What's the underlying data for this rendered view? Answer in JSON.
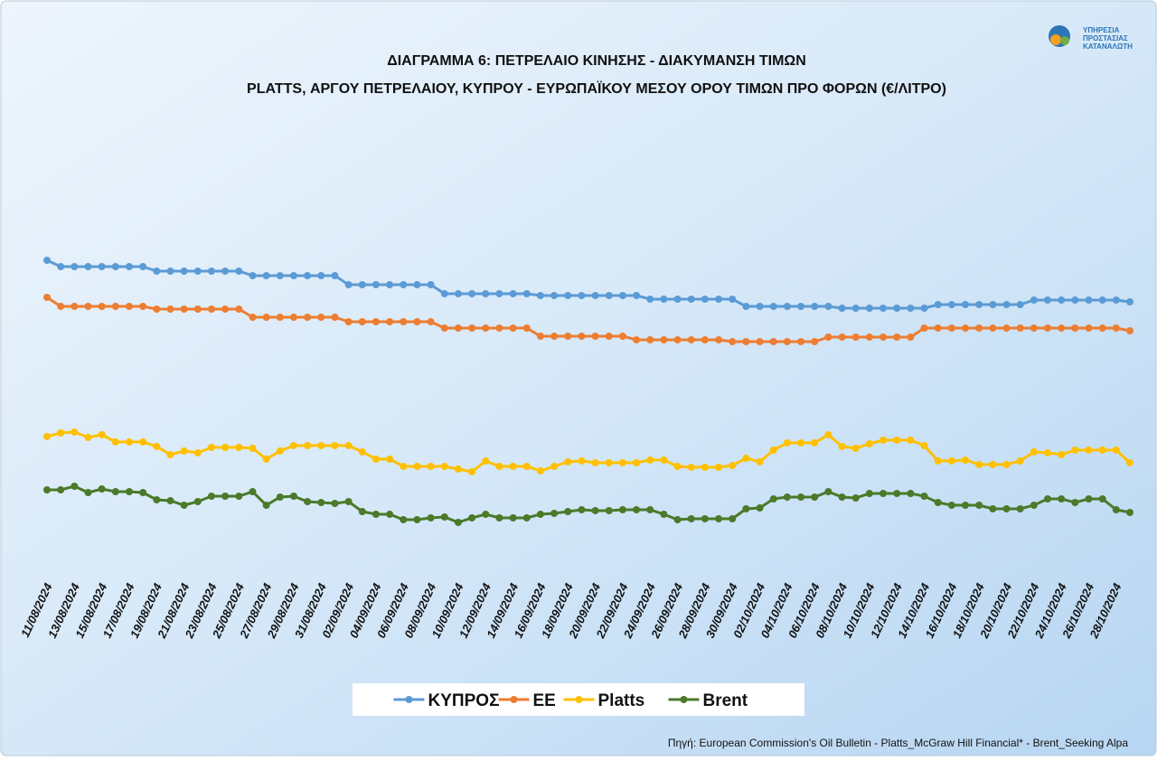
{
  "logo": {
    "lines": [
      "ΥΠΗΡΕΣΙΑ",
      "ΠΡΟΣΤΑΣΙΑΣ",
      "ΚΑΤΑΝΑΛΩΤΗ"
    ]
  },
  "chart_data": {
    "type": "line",
    "title": "ΔΙΑΓΡΑΜΜΑ 6: ΠΕΤΡΕΛΑΙΟ ΚΙΝΗΣΗΣ - ΔΙΑΚΥΜΑΝΣΗ ΤΙΜΩΝ",
    "subtitle": "PLATTS, ΑΡΓΟΥ ΠΕΤΡΕΛΑΙΟΥ, ΚΥΠΡΟΥ - ΕΥΡΩΠΑΪΚΟΥ ΜΕΣΟΥ ΟΡΟΥ ΤΙΜΩΝ ΠΡΟ ΦΟΡΩΝ (€/ΛΙΤΡΟ)",
    "source": "Πηγή: European Commission's Oil Bulletin - Platts_McGraw Hill Financial* - Brent_Seeking Alpa",
    "legend": "bottom",
    "ylim": [
      0.35,
      0.75
    ],
    "categories": [
      "11/08/2024",
      null,
      "13/08/2024",
      null,
      "15/08/2024",
      null,
      "17/08/2024",
      null,
      "19/08/2024",
      null,
      "21/08/2024",
      null,
      "23/08/2024",
      null,
      "25/08/2024",
      null,
      "27/08/2024",
      null,
      "29/08/2024",
      null,
      "31/08/2024",
      null,
      "02/09/2024",
      null,
      "04/09/2024",
      null,
      "06/09/2024",
      null,
      "08/09/2024",
      null,
      "10/09/2024",
      null,
      "12/09/2024",
      null,
      "14/09/2024",
      null,
      "16/09/2024",
      null,
      "18/09/2024",
      null,
      "20/09/2024",
      null,
      "22/09/2024",
      null,
      "24/09/2024",
      null,
      "26/09/2024",
      null,
      "28/09/2024",
      null,
      "30/09/2024",
      null,
      "02/10/2024",
      null,
      "04/10/2024",
      null,
      "06/10/2024",
      null,
      "08/10/2024",
      null,
      "10/10/2024",
      null,
      "12/10/2024",
      null,
      "14/10/2024",
      null,
      "16/10/2024",
      null,
      "18/10/2024",
      null,
      "20/10/2024",
      null,
      "22/10/2024",
      null,
      "24/10/2024",
      null,
      "26/10/2024",
      null,
      "28/10/2024",
      null
    ],
    "series": [
      {
        "name": "ΚΥΠΡΟΣ",
        "color": "#5b9bd5",
        "values": [
          0.712,
          0.705,
          0.705,
          0.705,
          0.705,
          0.705,
          0.705,
          0.705,
          0.7,
          0.7,
          0.7,
          0.7,
          0.7,
          0.7,
          0.7,
          0.695,
          0.695,
          0.695,
          0.695,
          0.695,
          0.695,
          0.695,
          0.685,
          0.685,
          0.685,
          0.685,
          0.685,
          0.685,
          0.685,
          0.675,
          0.675,
          0.675,
          0.675,
          0.675,
          0.675,
          0.675,
          0.673,
          0.673,
          0.673,
          0.673,
          0.673,
          0.673,
          0.673,
          0.673,
          0.669,
          0.669,
          0.669,
          0.669,
          0.669,
          0.669,
          0.669,
          0.661,
          0.661,
          0.661,
          0.661,
          0.661,
          0.661,
          0.661,
          0.659,
          0.659,
          0.659,
          0.659,
          0.659,
          0.659,
          0.659,
          0.663,
          0.663,
          0.663,
          0.663,
          0.663,
          0.663,
          0.663,
          0.668,
          0.668,
          0.668,
          0.668,
          0.668,
          0.668,
          0.668,
          0.666
        ]
      },
      {
        "name": "ΕΕ",
        "color": "#ed7d31",
        "values": [
          0.671,
          0.661,
          0.661,
          0.661,
          0.661,
          0.661,
          0.661,
          0.661,
          0.658,
          0.658,
          0.658,
          0.658,
          0.658,
          0.658,
          0.658,
          0.649,
          0.649,
          0.649,
          0.649,
          0.649,
          0.649,
          0.649,
          0.644,
          0.644,
          0.644,
          0.644,
          0.644,
          0.644,
          0.644,
          0.637,
          0.637,
          0.637,
          0.637,
          0.637,
          0.637,
          0.637,
          0.628,
          0.628,
          0.628,
          0.628,
          0.628,
          0.628,
          0.628,
          0.624,
          0.624,
          0.624,
          0.624,
          0.624,
          0.624,
          0.624,
          0.622,
          0.622,
          0.622,
          0.622,
          0.622,
          0.622,
          0.622,
          0.627,
          0.627,
          0.627,
          0.627,
          0.627,
          0.627,
          0.627,
          0.637,
          0.637,
          0.637,
          0.637,
          0.637,
          0.637,
          0.637,
          0.637,
          0.637,
          0.637,
          0.637,
          0.637,
          0.637,
          0.637,
          0.637,
          0.634
        ]
      },
      {
        "name": "Platts",
        "color": "#ffc000",
        "values": [
          0.517,
          0.521,
          0.522,
          0.516,
          0.519,
          0.511,
          0.511,
          0.511,
          0.506,
          0.497,
          0.501,
          0.499,
          0.505,
          0.505,
          0.505,
          0.504,
          0.492,
          0.501,
          0.507,
          0.507,
          0.507,
          0.507,
          0.507,
          0.5,
          0.492,
          0.492,
          0.484,
          0.484,
          0.484,
          0.484,
          0.481,
          0.478,
          0.49,
          0.484,
          0.484,
          0.484,
          0.479,
          0.484,
          0.489,
          0.49,
          0.488,
          0.488,
          0.488,
          0.488,
          0.491,
          0.491,
          0.484,
          0.483,
          0.483,
          0.483,
          0.485,
          0.493,
          0.489,
          0.502,
          0.51,
          0.51,
          0.51,
          0.519,
          0.506,
          0.504,
          0.509,
          0.513,
          0.513,
          0.513,
          0.507,
          0.49,
          0.49,
          0.491,
          0.486,
          0.486,
          0.486,
          0.49,
          0.5,
          0.499,
          0.497,
          0.502,
          0.502,
          0.502,
          0.502,
          0.488
        ]
      },
      {
        "name": "Brent",
        "color": "#4a7a2a",
        "values": [
          0.458,
          0.458,
          0.462,
          0.455,
          0.459,
          0.456,
          0.456,
          0.455,
          0.447,
          0.446,
          0.441,
          0.445,
          0.451,
          0.451,
          0.451,
          0.456,
          0.441,
          0.45,
          0.451,
          0.445,
          0.444,
          0.443,
          0.445,
          0.434,
          0.431,
          0.431,
          0.425,
          0.425,
          0.427,
          0.428,
          0.422,
          0.427,
          0.431,
          0.427,
          0.427,
          0.427,
          0.431,
          0.432,
          0.434,
          0.436,
          0.435,
          0.435,
          0.436,
          0.436,
          0.436,
          0.431,
          0.425,
          0.426,
          0.426,
          0.426,
          0.426,
          0.437,
          0.438,
          0.448,
          0.45,
          0.45,
          0.45,
          0.456,
          0.45,
          0.449,
          0.454,
          0.454,
          0.454,
          0.454,
          0.451,
          0.444,
          0.441,
          0.441,
          0.441,
          0.437,
          0.437,
          0.437,
          0.441,
          0.448,
          0.448,
          0.444,
          0.448,
          0.448,
          0.436,
          0.433
        ]
      }
    ]
  }
}
